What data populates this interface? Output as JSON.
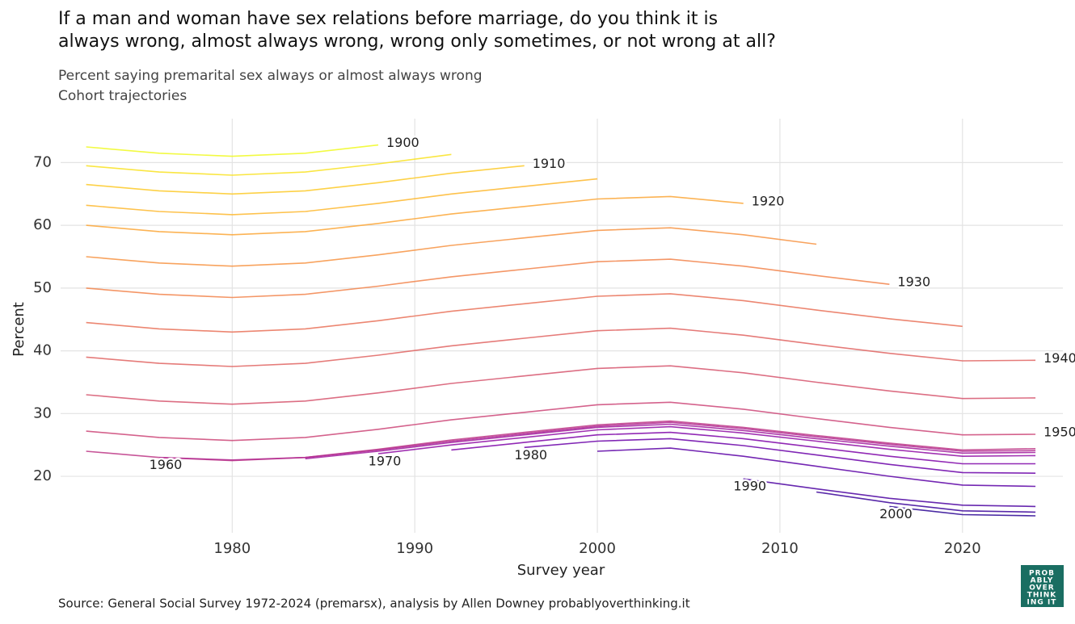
{
  "chart_data": {
    "type": "line",
    "title": [
      "If a man and woman have sex relations before marriage, do you think it is",
      "always wrong, almost always wrong, wrong only sometimes, or not wrong at all?"
    ],
    "subtitle": [
      "Percent saying premarital sex always or almost always wrong",
      "Cohort trajectories"
    ],
    "x_label": "Survey year",
    "y_label": "Percent",
    "source": "Source: General Social Survey 1972-2024 (premarsx), analysis by Allen Downey probablyoverthinking.it",
    "x": [
      1972,
      1976,
      1980,
      1984,
      1988,
      1992,
      1996,
      2000,
      2004,
      2008,
      2012,
      2016,
      2020,
      2024
    ],
    "xlim": [
      1970.6,
      2025.5
    ],
    "xticks": [
      1980,
      1990,
      2000,
      2010,
      2020
    ],
    "ylim": [
      11,
      77
    ],
    "yticks": [
      20,
      30,
      40,
      50,
      60,
      70
    ],
    "grid": true,
    "series": [
      {
        "name": "1900",
        "color": "#f0f921",
        "values": [
          72.5,
          71.5,
          71,
          71.5,
          72.8,
          null,
          null,
          null,
          null,
          null,
          null,
          null,
          null,
          null
        ]
      },
      {
        "color": "#f9e221",
        "values": [
          69.5,
          68.5,
          68,
          68.5,
          69.8,
          71.3,
          null,
          null,
          null,
          null,
          null,
          null,
          null,
          null
        ]
      },
      {
        "name": "1910",
        "color": "#fdc926",
        "values": [
          66.5,
          65.5,
          65,
          65.5,
          66.8,
          68.3,
          69.5,
          null,
          null,
          null,
          null,
          null,
          null,
          null
        ]
      },
      {
        "color": "#feb72d",
        "values": [
          63.2,
          62.2,
          61.7,
          62.2,
          63.5,
          65,
          66.2,
          67.4,
          null,
          null,
          null,
          null,
          null,
          null
        ]
      },
      {
        "name": "1920",
        "color": "#fca636",
        "values": [
          60,
          59,
          58.5,
          59,
          60.3,
          61.8,
          63,
          64.2,
          64.6,
          63.5,
          null,
          null,
          null,
          null
        ]
      },
      {
        "color": "#f79342",
        "values": [
          55,
          54,
          53.5,
          54,
          55.3,
          56.8,
          58,
          59.2,
          59.6,
          58.5,
          57,
          null,
          null,
          null
        ]
      },
      {
        "name": "1930",
        "color": "#f2844b",
        "values": [
          50,
          49,
          48.5,
          49,
          50.3,
          51.8,
          53,
          54.2,
          54.6,
          53.5,
          52,
          50.6,
          null,
          null
        ]
      },
      {
        "color": "#e97158",
        "values": [
          44.5,
          43.5,
          43,
          43.5,
          44.8,
          46.3,
          47.5,
          48.7,
          49.1,
          48,
          46.5,
          45.1,
          43.9,
          null
        ]
      },
      {
        "name": "1940",
        "color": "#e16462",
        "values": [
          39,
          38,
          37.5,
          38,
          39.3,
          40.8,
          42,
          43.2,
          43.6,
          42.5,
          41,
          39.6,
          38.4,
          38.5
        ]
      },
      {
        "color": "#d6556d",
        "values": [
          33,
          32,
          31.5,
          32,
          33.3,
          34.8,
          36,
          37.2,
          37.6,
          36.5,
          35,
          33.6,
          32.4,
          32.5
        ]
      },
      {
        "name": "1950",
        "color": "#cc4778",
        "values": [
          27.2,
          26.2,
          25.7,
          26.2,
          27.5,
          29,
          30.2,
          31.4,
          31.8,
          30.7,
          29.2,
          27.8,
          26.6,
          26.7
        ]
      },
      {
        "color": "#bd3786",
        "values": [
          24,
          23,
          22.5,
          23,
          24.3,
          25.8,
          27,
          28.2,
          28.8,
          27.8,
          26.5,
          25.3,
          24.2,
          24.4
        ]
      },
      {
        "name": "1960",
        "color": "#b12a90",
        "values": [
          null,
          23,
          22.6,
          23,
          24.2,
          25.6,
          26.8,
          28,
          28.6,
          27.6,
          26.3,
          25.1,
          24,
          24.1
        ]
      },
      {
        "color": "#a01a9c",
        "values": [
          null,
          null,
          null,
          22.8,
          24,
          25.4,
          26.6,
          27.8,
          28.3,
          27.3,
          26,
          24.8,
          23.7,
          23.8
        ]
      },
      {
        "name": "1970",
        "color": "#8f0da4",
        "values": [
          null,
          null,
          null,
          null,
          23.6,
          25,
          26.2,
          27.4,
          27.9,
          26.9,
          25.6,
          24.3,
          23.2,
          23.3
        ]
      },
      {
        "color": "#7e03a8",
        "values": [
          null,
          null,
          null,
          null,
          null,
          24.2,
          25.4,
          26.6,
          27,
          26,
          24.6,
          23.2,
          22,
          22
        ]
      },
      {
        "name": "1980",
        "color": "#6a00a8",
        "values": [
          null,
          null,
          null,
          null,
          null,
          null,
          24.6,
          25.6,
          26,
          24.9,
          23.4,
          21.9,
          20.6,
          20.5
        ]
      },
      {
        "color": "#5c01a6",
        "values": [
          null,
          null,
          null,
          null,
          null,
          null,
          null,
          24,
          24.5,
          23.2,
          21.6,
          20,
          18.6,
          18.4
        ]
      },
      {
        "name": "1990",
        "color": "#4c02a1",
        "values": [
          null,
          null,
          null,
          null,
          null,
          null,
          null,
          null,
          null,
          19.6,
          18,
          16.5,
          15.4,
          15.2
        ]
      },
      {
        "color": "#3b049a",
        "values": [
          null,
          null,
          null,
          null,
          null,
          null,
          null,
          null,
          null,
          null,
          17.5,
          15.8,
          14.5,
          14.3
        ]
      },
      {
        "name": "2000",
        "color": "#2a0593",
        "values": [
          null,
          null,
          null,
          null,
          null,
          null,
          null,
          null,
          null,
          null,
          null,
          15.2,
          13.9,
          13.7
        ]
      }
    ]
  },
  "logo": [
    "PROB",
    "ABLY",
    "OVER",
    "THINK",
    "ING IT"
  ]
}
